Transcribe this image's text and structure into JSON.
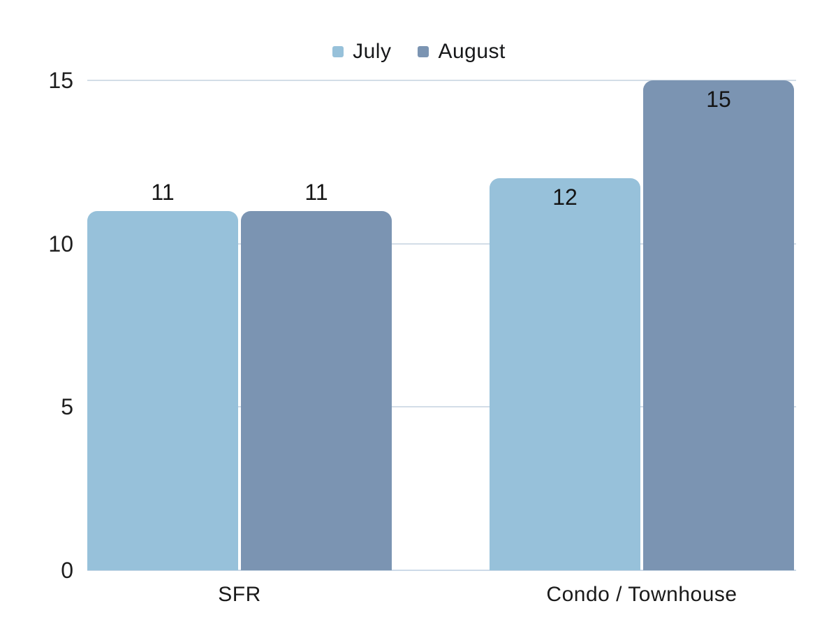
{
  "chart_data": {
    "type": "bar",
    "title": "",
    "categories": [
      "SFR",
      "Condo / Townhouse"
    ],
    "series": [
      {
        "name": "July",
        "color": "#97c1da",
        "values": [
          11,
          12
        ],
        "data_labels": [
          "11",
          "12"
        ],
        "label_inside": [
          false,
          true
        ]
      },
      {
        "name": "August",
        "color": "#7b94b2",
        "values": [
          11,
          15
        ],
        "data_labels": [
          "11",
          "15"
        ],
        "label_inside": [
          false,
          true
        ]
      }
    ],
    "ylim": [
      0,
      15
    ],
    "yticks": [
      "0",
      "5",
      "10",
      "15"
    ],
    "ytick_values": [
      0,
      5,
      10,
      15
    ],
    "grid": true,
    "legend_position": "top",
    "colors": {
      "july": "#97c1da",
      "august": "#7b94b2",
      "gridline": "#d3dde7",
      "baseline": "#cddae8",
      "text": "#1a1a1a"
    }
  }
}
